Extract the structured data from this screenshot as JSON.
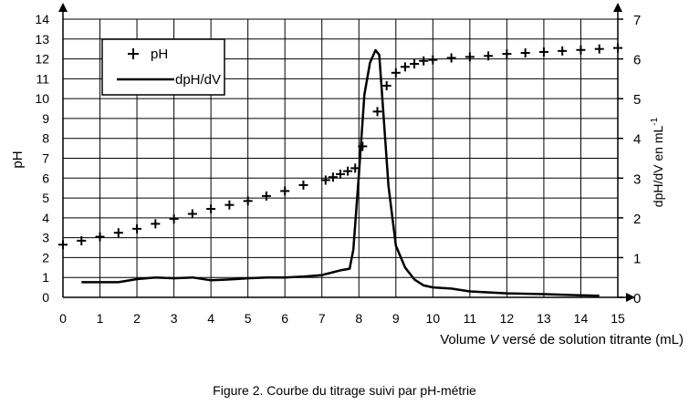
{
  "caption": "Figure 2. Courbe du titrage suivi par pH-métrie",
  "chart_data": {
    "type": "line",
    "xlabel_prefix": "Volume ",
    "xlabel_var": "V",
    "xlabel_suffix": " versé de solution titrante (mL)",
    "ylabel_left": "pH",
    "ylabel_right_main": "dpH/dV en mL",
    "ylabel_right_sup": "-1",
    "xlim": [
      0,
      15
    ],
    "ylim_left": [
      0,
      14
    ],
    "ylim_right": [
      0,
      7
    ],
    "x_ticks": [
      "0",
      "1",
      "2",
      "3",
      "4",
      "5",
      "6",
      "7",
      "8",
      "9",
      "10",
      "11",
      "12",
      "13",
      "14",
      "15"
    ],
    "y_left_ticks": [
      "0",
      "1",
      "2",
      "3",
      "4",
      "5",
      "6",
      "7",
      "8",
      "9",
      "10",
      "11",
      "12",
      "13",
      "14"
    ],
    "y_right_ticks": [
      "0",
      "1",
      "2",
      "3",
      "4",
      "5",
      "6",
      "7"
    ],
    "grid": true,
    "legend_position": "top-left",
    "series": [
      {
        "name": "pH",
        "axis": "left",
        "marker": "+",
        "x": [
          0,
          0.5,
          1,
          1.5,
          2,
          2.5,
          3,
          3.5,
          4,
          4.5,
          5,
          5.5,
          6,
          6.5,
          7.1,
          7.3,
          7.5,
          7.7,
          7.9,
          8.1,
          8.5,
          8.75,
          9,
          9.25,
          9.5,
          9.75,
          10,
          10.5,
          11,
          11.5,
          12,
          12.5,
          13,
          13.5,
          14,
          14.5,
          15
        ],
        "y": [
          2.65,
          2.85,
          3.05,
          3.25,
          3.45,
          3.7,
          3.95,
          4.2,
          4.45,
          4.65,
          4.85,
          5.1,
          5.35,
          5.65,
          5.9,
          6.05,
          6.2,
          6.35,
          6.5,
          7.6,
          9.35,
          10.65,
          11.3,
          11.6,
          11.75,
          11.9,
          11.95,
          12.05,
          12.1,
          12.15,
          12.25,
          12.3,
          12.35,
          12.4,
          12.45,
          12.5,
          12.55
        ]
      },
      {
        "name": "dpH/dV",
        "axis": "right",
        "marker": "line",
        "x": [
          0.5,
          1,
          1.5,
          2,
          2.5,
          3,
          3.5,
          4,
          4.5,
          5,
          5.5,
          6,
          6.5,
          7,
          7.25,
          7.5,
          7.75,
          7.85,
          8,
          8.15,
          8.3,
          8.45,
          8.55,
          8.65,
          8.8,
          9,
          9.25,
          9.5,
          9.75,
          10,
          10.5,
          11,
          12,
          13,
          14,
          14.5
        ],
        "y": [
          0.38,
          0.38,
          0.38,
          0.46,
          0.5,
          0.48,
          0.5,
          0.43,
          0.45,
          0.48,
          0.5,
          0.5,
          0.52,
          0.56,
          0.62,
          0.68,
          0.72,
          1.2,
          3.1,
          5.1,
          5.9,
          6.22,
          6.1,
          4.8,
          2.8,
          1.3,
          0.75,
          0.45,
          0.3,
          0.25,
          0.22,
          0.15,
          0.1,
          0.08,
          0.05,
          0.04
        ]
      }
    ]
  }
}
